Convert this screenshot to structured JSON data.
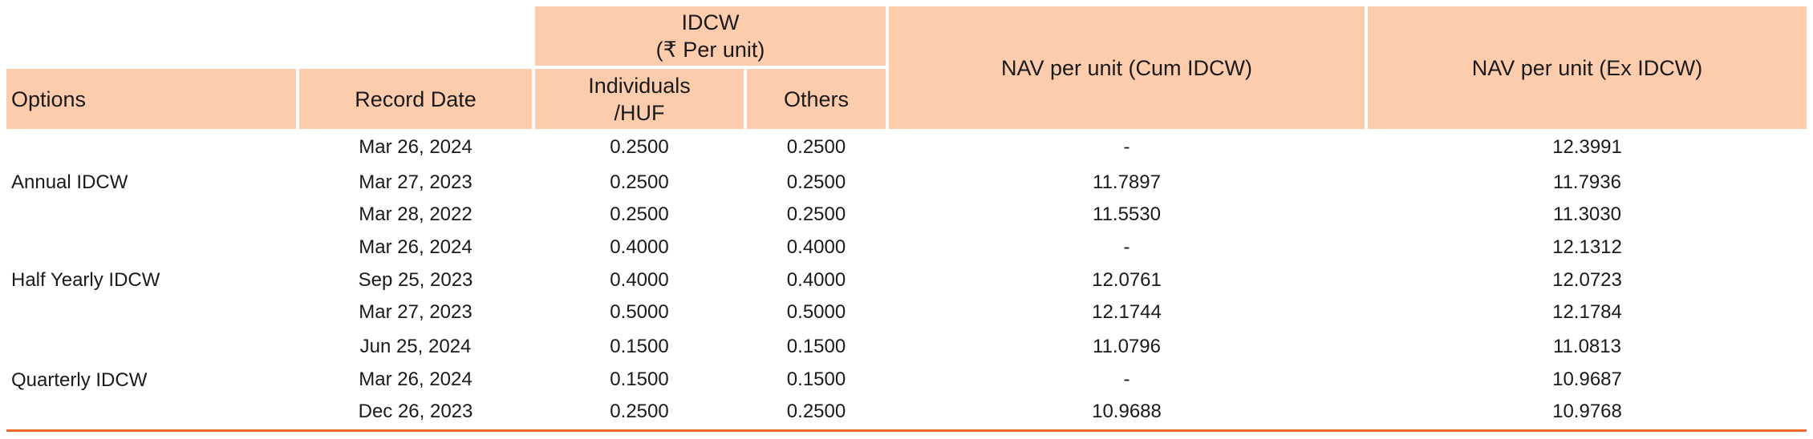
{
  "header": {
    "idcw": "IDCW",
    "idcw_unit": "(₹ Per unit)",
    "options": "Options",
    "record_date": "Record Date",
    "individuals": "Individuals",
    "huf": "/HUF",
    "others": "Others",
    "nav_cum": "NAV per unit (Cum IDCW)",
    "nav_ex": "NAV per unit (Ex IDCW)"
  },
  "groups": [
    {
      "option": "Annual IDCW"
    },
    {
      "option": "Half Yearly IDCW"
    },
    {
      "option": "Quarterly IDCW"
    }
  ],
  "rows": [
    {
      "date": "Mar 26, 2024",
      "ind": "0.2500",
      "oth": "0.2500",
      "cum": "-",
      "ex": "12.3991"
    },
    {
      "date": "Mar 27, 2023",
      "ind": "0.2500",
      "oth": "0.2500",
      "cum": "11.7897",
      "ex": "11.7936"
    },
    {
      "date": "Mar 28, 2022",
      "ind": "0.2500",
      "oth": "0.2500",
      "cum": "11.5530",
      "ex": "11.3030"
    },
    {
      "date": "Mar 26, 2024",
      "ind": "0.4000",
      "oth": "0.4000",
      "cum": "-",
      "ex": "12.1312"
    },
    {
      "date": "Sep 25, 2023",
      "ind": "0.4000",
      "oth": "0.4000",
      "cum": "12.0761",
      "ex": "12.0723"
    },
    {
      "date": "Mar 27, 2023",
      "ind": "0.5000",
      "oth": "0.5000",
      "cum": "12.1744",
      "ex": "12.1784"
    },
    {
      "date": "Jun 25, 2024",
      "ind": "0.1500",
      "oth": "0.1500",
      "cum": "11.0796",
      "ex": "11.0813"
    },
    {
      "date": "Mar 26, 2024",
      "ind": "0.1500",
      "oth": "0.1500",
      "cum": "-",
      "ex": "10.9687"
    },
    {
      "date": "Dec 26, 2023",
      "ind": "0.2500",
      "oth": "0.2500",
      "cum": "10.9688",
      "ex": "10.9768"
    }
  ]
}
